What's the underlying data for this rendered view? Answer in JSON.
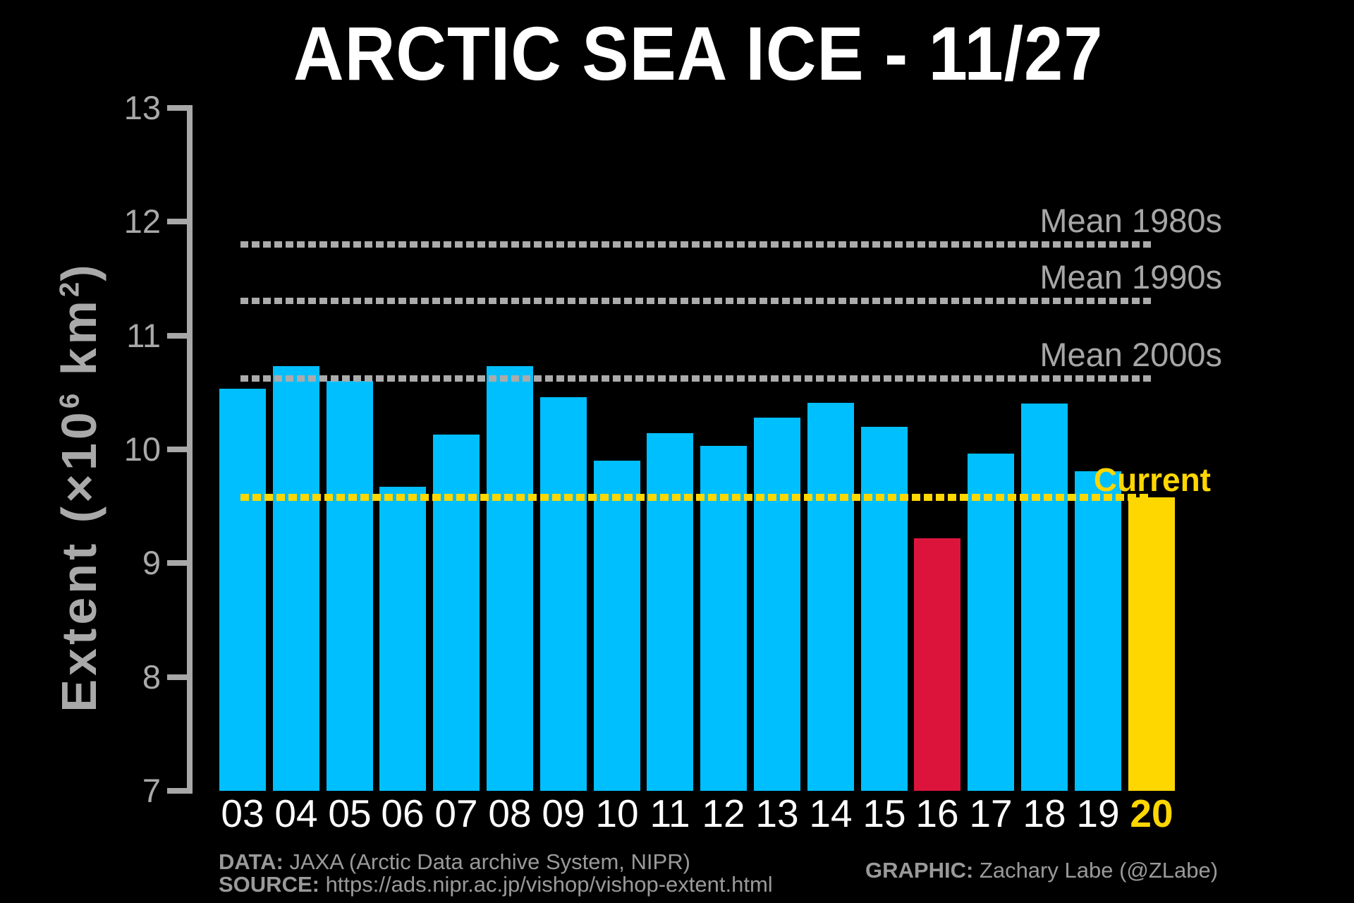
{
  "title": "ARCTIC SEA ICE - 11/27",
  "y_axis": {
    "label_parts": {
      "pre": "Extent (",
      "base": "×10",
      "exp": "6",
      "mid": " km",
      "exp2": "2",
      "post": ")"
    }
  },
  "chart_data": {
    "type": "bar",
    "title": "ARCTIC SEA ICE - 11/27",
    "ylabel": "Extent (×10^6 km^2)",
    "ylim": [
      7,
      13
    ],
    "yticks": [
      7,
      8,
      9,
      10,
      11,
      12,
      13
    ],
    "grid": false,
    "legend_position": "none",
    "categories": [
      "03",
      "04",
      "05",
      "06",
      "07",
      "08",
      "09",
      "10",
      "11",
      "12",
      "13",
      "14",
      "15",
      "16",
      "17",
      "18",
      "19",
      "20"
    ],
    "values": [
      10.53,
      10.73,
      10.6,
      9.67,
      10.13,
      10.73,
      10.46,
      9.9,
      10.14,
      10.03,
      10.28,
      10.41,
      10.2,
      9.22,
      9.96,
      10.4,
      9.81,
      9.58
    ],
    "bar_colors": {
      "default": "#00BFFF",
      "16": "#DC143C",
      "20": "#FFD700"
    },
    "x_label_colors": {
      "default": "#FFFFFF",
      "20": "#FFD700"
    },
    "reference_lines": [
      {
        "label": "Mean 1980s",
        "value": 11.8,
        "color": "#ABABAB",
        "style": "dashed",
        "emphasis": false
      },
      {
        "label": "Mean 1990s",
        "value": 11.3,
        "color": "#ABABAB",
        "style": "dashed",
        "emphasis": false
      },
      {
        "label": "Mean 2000s",
        "value": 10.62,
        "color": "#ABABAB",
        "style": "dashed",
        "emphasis": false
      },
      {
        "label": "Current",
        "value": 9.58,
        "color": "#FFD700",
        "style": "dashed",
        "emphasis": true
      }
    ]
  },
  "footer": {
    "data_label": "DATA:",
    "data_text": " JAXA (Arctic Data archive System, NIPR)",
    "source_label": "SOURCE:",
    "source_text": " https://ads.nipr.ac.jp/vishop/vishop-extent.html",
    "graphic_label": "GRAPHIC:",
    "graphic_text": " Zachary Labe (@ZLabe)"
  }
}
